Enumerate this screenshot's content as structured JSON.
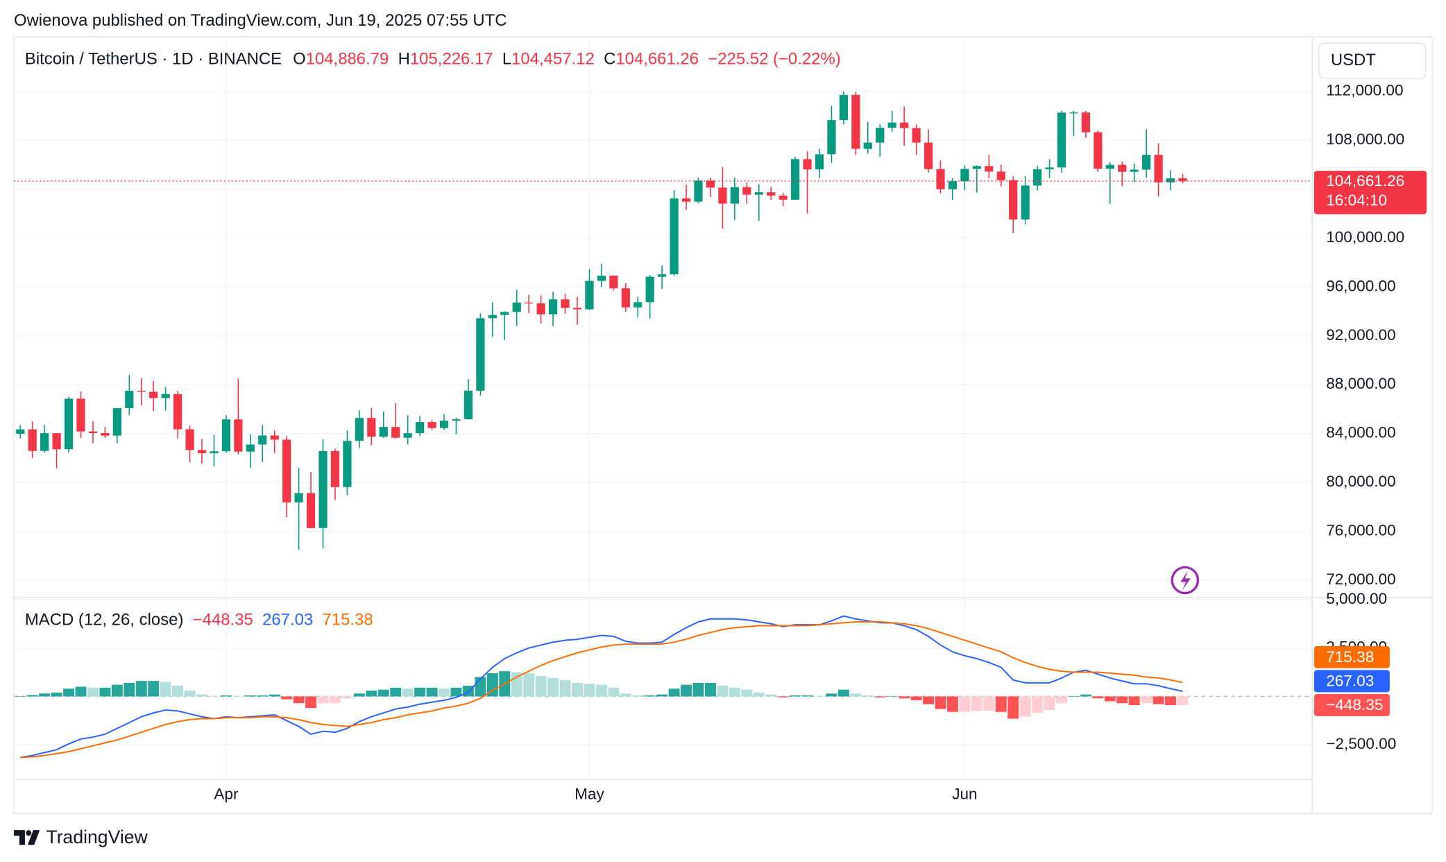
{
  "attribution": "Owienova published on TradingView.com, Jun 19, 2025 07:55 UTC",
  "brand": "TradingView",
  "chart_data": [
    {
      "type": "candlestick",
      "title": "Bitcoin / TetherUS · 1D · BINANCE",
      "header": [
        {
          "key": "O",
          "value": "104,886.79"
        },
        {
          "key": "H",
          "value": "105,226.17"
        },
        {
          "key": "L",
          "value": "104,457.12"
        },
        {
          "key": "C",
          "value": "104,661.26"
        }
      ],
      "change_label": "−225.52 (−0.22%)",
      "currency": "USDT",
      "last_price_label": "104,661.26",
      "countdown": "16:04:10",
      "colors": {
        "up": "#089981",
        "down": "#f23645"
      },
      "grid": true,
      "categories": [
        null,
        null,
        null,
        null,
        null,
        null,
        null,
        null,
        null,
        null,
        null,
        null,
        null,
        null,
        null,
        null,
        null,
        "Apr",
        null,
        null,
        null,
        null,
        null,
        null,
        null,
        null,
        null,
        null,
        null,
        null,
        null,
        null,
        null,
        null,
        null,
        null,
        null,
        null,
        null,
        null,
        null,
        null,
        null,
        null,
        null,
        null,
        null,
        "May",
        null,
        null,
        null,
        null,
        null,
        null,
        null,
        null,
        null,
        null,
        null,
        null,
        null,
        null,
        null,
        null,
        null,
        null,
        null,
        null,
        null,
        null,
        null,
        null,
        null,
        null,
        null,
        null,
        null,
        null,
        "Jun",
        null,
        null,
        null,
        null,
        null,
        null,
        null,
        null,
        null,
        null,
        null,
        null,
        null,
        null,
        null,
        null,
        null,
        null
      ],
      "open": [
        83980,
        84340,
        82580,
        84030,
        82720,
        86850,
        84170,
        84040,
        83830,
        86080,
        87500,
        87420,
        86900,
        87230,
        84350,
        82650,
        82390,
        82550,
        85160,
        82520,
        83100,
        83840,
        83500,
        78370,
        79130,
        76270,
        82570,
        79620,
        83400,
        85280,
        83740,
        84540,
        83660,
        84030,
        84940,
        84450,
        85060,
        85170,
        87510,
        93440,
        93700,
        93950,
        94720,
        94650,
        93750,
        94980,
        94280,
        94170,
        96490,
        96910,
        95890,
        94320,
        94750,
        96830,
        97030,
        103240,
        102970,
        104700,
        104120,
        102810,
        104160,
        103540,
        103740,
        103470,
        103130,
        106450,
        105610,
        106850,
        109640,
        111700,
        107290,
        107800,
        109020,
        109440,
        108990,
        107800,
        105640,
        103990,
        104640,
        105650,
        105880,
        105430,
        104730,
        101510,
        104290,
        105620,
        105770,
        110260,
        110270,
        108650,
        105670,
        105980,
        105410,
        105590,
        106800,
        104550,
        104886.79
      ],
      "high": [
        84700,
        85000,
        84700,
        84050,
        87000,
        87450,
        85000,
        84550,
        86100,
        88800,
        88550,
        88300,
        87800,
        87500,
        84650,
        83550,
        83900,
        85500,
        88500,
        83950,
        84700,
        84250,
        83800,
        81200,
        80850,
        83550,
        82750,
        84250,
        85900,
        86100,
        85800,
        86500,
        85500,
        85450,
        85100,
        85600,
        85300,
        88450,
        93850,
        94700,
        94000,
        95750,
        95350,
        95300,
        95600,
        95450,
        95200,
        97450,
        97900,
        96950,
        96300,
        95200,
        96950,
        97750,
        103900,
        104350,
        104950,
        104950,
        105800,
        104950,
        104550,
        104400,
        104200,
        103700,
        106650,
        107100,
        107300,
        110800,
        111980,
        111950,
        109500,
        109300,
        110400,
        110750,
        109300,
        108900,
        106350,
        104900,
        105950,
        105950,
        106800,
        106000,
        105050,
        105050,
        105900,
        106450,
        110400,
        110400,
        110400,
        108800,
        106200,
        106250,
        106100,
        108900,
        107750,
        105550,
        105226.17
      ],
      "low": [
        83600,
        82000,
        82450,
        81150,
        82450,
        83650,
        83200,
        83650,
        83200,
        85500,
        86300,
        85850,
        85900,
        83600,
        81650,
        81550,
        81300,
        82450,
        82300,
        81200,
        81650,
        82400,
        77150,
        74500,
        76250,
        74600,
        78550,
        78950,
        82800,
        83050,
        83650,
        83600,
        83100,
        83800,
        84300,
        84300,
        83950,
        85150,
        87100,
        91900,
        91650,
        92800,
        93850,
        93000,
        92800,
        93800,
        92900,
        94100,
        96000,
        95700,
        93950,
        93500,
        93400,
        95850,
        96900,
        102300,
        102850,
        103350,
        100750,
        101450,
        102800,
        101400,
        103100,
        102600,
        103100,
        102000,
        104900,
        106150,
        109300,
        106800,
        106900,
        106650,
        108700,
        107550,
        106800,
        105350,
        103650,
        103100,
        103900,
        103700,
        104900,
        104200,
        100400,
        101100,
        103900,
        104900,
        105350,
        108350,
        108200,
        105400,
        102800,
        104250,
        104550,
        104950,
        103400,
        103900,
        104457.12
      ],
      "close": [
        84340,
        82580,
        84030,
        82720,
        86850,
        84170,
        84040,
        83830,
        86080,
        87500,
        87420,
        86900,
        87230,
        84350,
        82650,
        82390,
        82550,
        85160,
        82520,
        83100,
        83840,
        83500,
        78370,
        79130,
        76270,
        82570,
        79620,
        83400,
        85280,
        83740,
        84540,
        83660,
        84030,
        84940,
        84450,
        85060,
        85170,
        87510,
        93440,
        93700,
        93950,
        94720,
        94650,
        93750,
        94980,
        94280,
        94170,
        96490,
        96910,
        95890,
        94320,
        94750,
        96830,
        97030,
        103240,
        102970,
        104700,
        104120,
        102810,
        104160,
        103540,
        103740,
        103470,
        103130,
        106450,
        105610,
        106850,
        109640,
        111700,
        107290,
        107800,
        109020,
        109440,
        108990,
        107800,
        105640,
        103990,
        104640,
        105650,
        105880,
        105430,
        104730,
        101510,
        104290,
        105620,
        105770,
        110260,
        110270,
        108650,
        105670,
        105980,
        105410,
        105590,
        106800,
        104550,
        104886.79,
        104661.26
      ],
      "ylim": [
        70570,
        116450
      ],
      "yticks": [
        {
          "value": 72000,
          "label": "72,000.00"
        },
        {
          "value": 76000,
          "label": "76,000.00"
        },
        {
          "value": 80000,
          "label": "80,000.00"
        },
        {
          "value": 84000,
          "label": "84,000.00"
        },
        {
          "value": 88000,
          "label": "88,000.00"
        },
        {
          "value": 92000,
          "label": "92,000.00"
        },
        {
          "value": 96000,
          "label": "96,000.00"
        },
        {
          "value": 100000,
          "label": "100,000.00"
        },
        {
          "value": 104000,
          "label": "104,000.00"
        },
        {
          "value": 108000,
          "label": "108,000.00"
        },
        {
          "value": 112000,
          "label": "112,000.00"
        }
      ]
    },
    {
      "type": "macd",
      "title": "MACD (12, 26, close)",
      "grid": true,
      "histogram": {
        "last_label": "−448.35",
        "colors": {
          "up_rising": "#26a69a",
          "up_falling": "#b2dfdb",
          "down_falling": "#ff5252",
          "down_rising": "#ffcdd2"
        },
        "label_color": "#ff5252",
        "values": [
          0,
          70,
          150,
          200,
          400,
          500,
          450,
          450,
          600,
          700,
          800,
          800,
          750,
          550,
          300,
          100,
          0,
          50,
          0,
          50,
          50,
          100,
          -150,
          -350,
          -600,
          -350,
          -350,
          -100,
          150,
          300,
          350,
          450,
          400,
          450,
          450,
          400,
          450,
          550,
          1000,
          1200,
          1300,
          1250,
          1200,
          1050,
          950,
          850,
          700,
          650,
          600,
          450,
          150,
          50,
          50,
          100,
          400,
          600,
          700,
          700,
          550,
          450,
          350,
          200,
          100,
          -50,
          50,
          50,
          0,
          150,
          350,
          150,
          50,
          -50,
          0,
          -100,
          -200,
          -400,
          -650,
          -800,
          -800,
          -750,
          -750,
          -800,
          -1150,
          -1050,
          -850,
          -700,
          -350,
          0,
          100,
          -100,
          -250,
          -350,
          -450,
          -350,
          -400,
          -450,
          -448.35
        ]
      },
      "series": [
        {
          "color": "#2962ff",
          "last_label": "267.03",
          "values": [
            -3150,
            -3050,
            -2900,
            -2750,
            -2450,
            -2200,
            -2100,
            -1950,
            -1650,
            -1350,
            -1050,
            -850,
            -700,
            -750,
            -900,
            -1050,
            -1150,
            -1050,
            -1100,
            -1050,
            -1000,
            -950,
            -1250,
            -1550,
            -1950,
            -1800,
            -1850,
            -1650,
            -1300,
            -1050,
            -850,
            -650,
            -550,
            -400,
            -300,
            -200,
            -50,
            200,
            900,
            1500,
            1950,
            2250,
            2500,
            2650,
            2800,
            2900,
            2950,
            3050,
            3150,
            3100,
            2850,
            2750,
            2750,
            2800,
            3200,
            3550,
            3850,
            4000,
            4000,
            4000,
            3950,
            3850,
            3750,
            3600,
            3700,
            3700,
            3700,
            3900,
            4150,
            4000,
            3900,
            3800,
            3800,
            3650,
            3450,
            3100,
            2650,
            2300,
            2100,
            1950,
            1750,
            1500,
            850,
            700,
            700,
            700,
            950,
            1250,
            1350,
            1150,
            950,
            800,
            650,
            650,
            550,
            400,
            267.03
          ]
        },
        {
          "color": "#ff6d00",
          "last_label": "715.38",
          "values": [
            -3150,
            -3120,
            -3050,
            -2950,
            -2850,
            -2700,
            -2550,
            -2400,
            -2250,
            -2050,
            -1850,
            -1650,
            -1450,
            -1300,
            -1200,
            -1150,
            -1150,
            -1100,
            -1100,
            -1100,
            -1050,
            -1050,
            -1100,
            -1200,
            -1350,
            -1450,
            -1500,
            -1550,
            -1450,
            -1350,
            -1200,
            -1100,
            -950,
            -850,
            -750,
            -600,
            -500,
            -350,
            -100,
            300,
            650,
            1000,
            1300,
            1600,
            1850,
            2050,
            2250,
            2400,
            2550,
            2650,
            2700,
            2700,
            2700,
            2700,
            2800,
            2950,
            3150,
            3300,
            3450,
            3550,
            3600,
            3650,
            3650,
            3650,
            3650,
            3650,
            3700,
            3750,
            3800,
            3850,
            3850,
            3850,
            3800,
            3750,
            3650,
            3500,
            3300,
            3100,
            2900,
            2700,
            2500,
            2300,
            2000,
            1750,
            1550,
            1400,
            1300,
            1250,
            1250,
            1250,
            1200,
            1150,
            1100,
            1000,
            950,
            850,
            715.38
          ]
        }
      ],
      "ylim": [
        -4286,
        5095
      ],
      "yticks": [
        {
          "value": 5000,
          "label": "5,000.00"
        },
        {
          "value": 2500,
          "label": "2,500.00"
        },
        {
          "value": -2500,
          "label": "−2,500.00"
        }
      ]
    }
  ]
}
